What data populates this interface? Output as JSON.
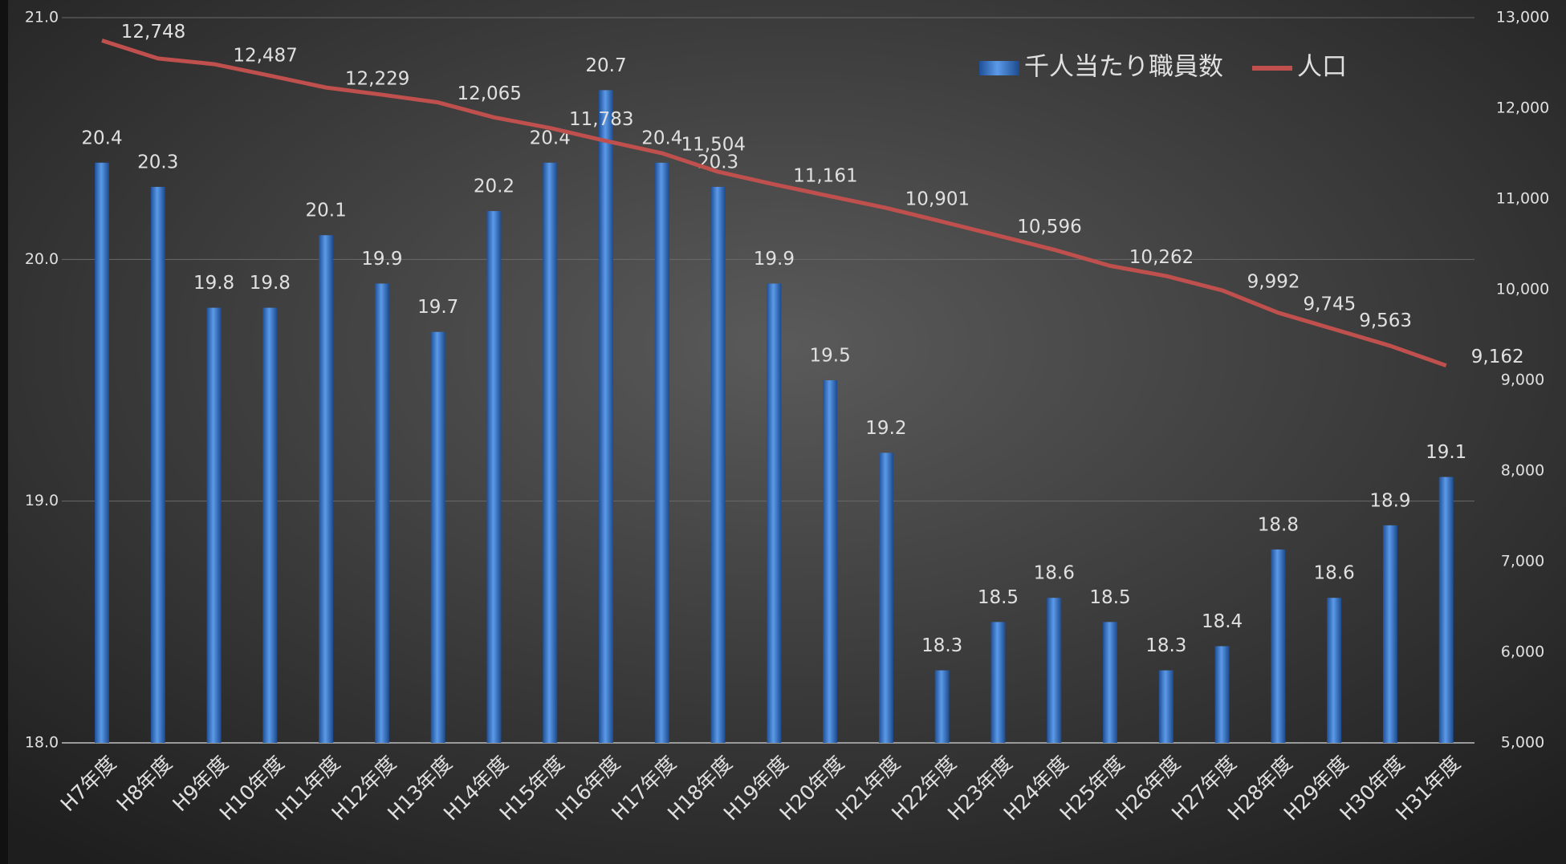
{
  "chart_data": {
    "type": "bar_line",
    "categories": [
      "H7年度",
      "H8年度",
      "H9年度",
      "H10年度",
      "H11年度",
      "H12年度",
      "H13年度",
      "H14年度",
      "H15年度",
      "H16年度",
      "H17年度",
      "H18年度",
      "H19年度",
      "H20年度",
      "H21年度",
      "H22年度",
      "H23年度",
      "H24年度",
      "H25年度",
      "H26年度",
      "H27年度",
      "H28年度",
      "H29年度",
      "H30年度",
      "H31年度"
    ],
    "series": [
      {
        "name": "千人当たり職員数",
        "type": "bar",
        "color": "#3f7fd0",
        "values": [
          20.4,
          20.3,
          19.8,
          19.8,
          20.1,
          19.9,
          19.7,
          20.2,
          20.4,
          20.7,
          20.4,
          20.3,
          19.9,
          19.5,
          19.2,
          18.3,
          18.5,
          18.6,
          18.5,
          18.3,
          18.4,
          18.8,
          18.6,
          18.9,
          19.1
        ]
      },
      {
        "name": "人口",
        "type": "line",
        "axis": "y2",
        "color": "#c0504d",
        "values": [
          12748,
          12550,
          12487,
          12360,
          12229,
          12150,
          12065,
          11900,
          11783,
          11640,
          11504,
          11300,
          11161,
          11030,
          10901,
          10750,
          10596,
          10440,
          10262,
          10150,
          9992,
          9745,
          9563,
          9380,
          9162
        ],
        "value_labels": [
          "12,748",
          null,
          "12,487",
          null,
          "12,229",
          null,
          "12,065",
          null,
          "11,783",
          null,
          "11,504",
          null,
          "11,161",
          null,
          "10,901",
          null,
          "10,596",
          null,
          "10,262",
          null,
          "9,992",
          "9,745",
          "9,563",
          null,
          "9,162"
        ]
      }
    ],
    "ylim": [
      18,
      21
    ],
    "yticks": [
      {
        "value": 18,
        "label": "18.0"
      },
      {
        "value": 19,
        "label": "19.0"
      },
      {
        "value": 20,
        "label": "20.0"
      },
      {
        "value": 21,
        "label": "21.0"
      }
    ],
    "y2lim": [
      5000,
      13000
    ],
    "y2ticks": [
      {
        "value": 5000,
        "label": "5,000"
      },
      {
        "value": 6000,
        "label": "6,000"
      },
      {
        "value": 7000,
        "label": "7,000"
      },
      {
        "value": 8000,
        "label": "8,000"
      },
      {
        "value": 9000,
        "label": "9,000"
      },
      {
        "value": 10000,
        "label": "10,000"
      },
      {
        "value": 11000,
        "label": "11,000"
      },
      {
        "value": 12000,
        "label": "12,000"
      },
      {
        "value": 13000,
        "label": "13,000"
      }
    ],
    "grid": true,
    "legend": "top-right"
  }
}
